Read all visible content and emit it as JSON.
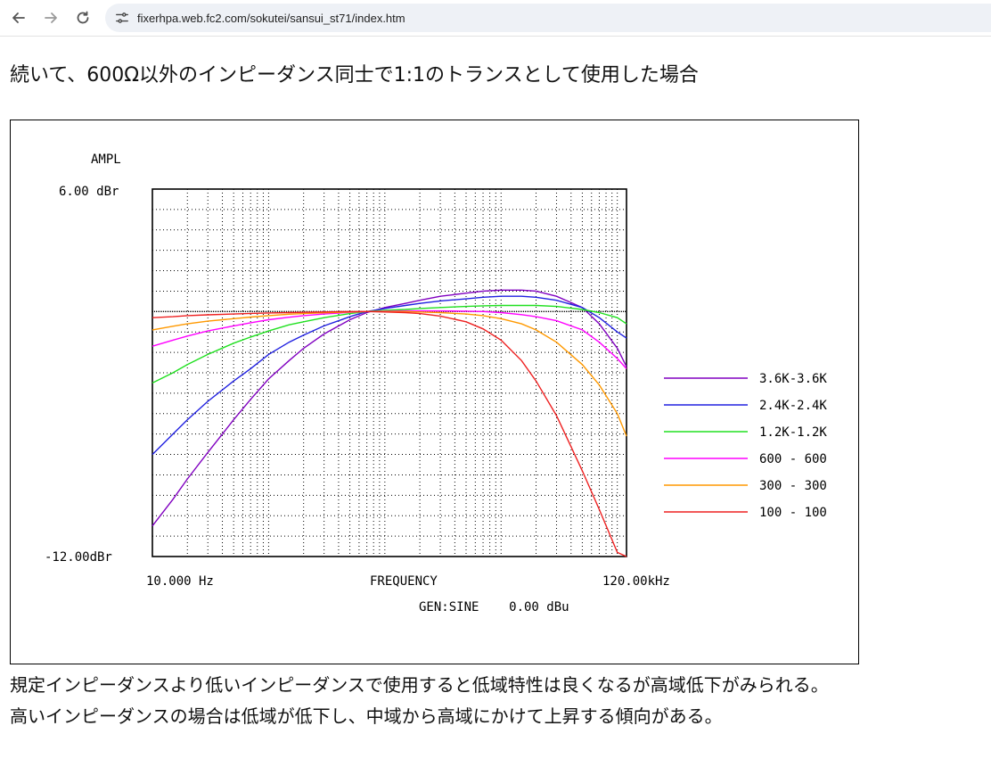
{
  "browser": {
    "url": "fixerhpa.web.fc2.com/sokutei/sansui_st71/index.htm",
    "icons": {
      "back": "arrow-left-icon",
      "forward": "arrow-right-icon",
      "reload": "reload-icon",
      "site": "site-settings-icon"
    }
  },
  "page": {
    "heading": "続いて、600Ω以外のインピーダンス同士で1:1のトランスとして使用した場合",
    "paragraph_1": "規定インピーダンスより低いインピーダンスで使用すると低域特性は良くなるが高域低下がみられる。",
    "paragraph_2": "高いインピーダンスの場合は低域が低下し、中域から高域にかけて上昇する傾向がある。"
  },
  "chart_data": {
    "type": "line",
    "ylabel": "AMPL",
    "y_top_label": "6.00 dBr",
    "y_bottom_label": "-12.00dBr",
    "x_left_label": "10.000 Hz",
    "x_right_label": "120.00kHz",
    "xlabel": "FREQUENCY",
    "generator_label": "GEN:SINE    0.00 dBu",
    "xscale": "log",
    "xlim": [
      10,
      120000
    ],
    "ylim": [
      -12,
      6
    ],
    "grid": true,
    "legend_position": "right",
    "series": [
      {
        "name": "3.6K-3.6K",
        "color": "#8000c0",
        "x": [
          10,
          15,
          20,
          30,
          50,
          70,
          100,
          150,
          200,
          300,
          500,
          700,
          1000,
          1500,
          2000,
          3000,
          5000,
          7000,
          10000,
          15000,
          20000,
          30000,
          50000,
          70000,
          100000,
          120000
        ],
        "y": [
          -10.5,
          -9.2,
          -8.2,
          -6.9,
          -5.3,
          -4.3,
          -3.3,
          -2.4,
          -1.8,
          -1.1,
          -0.4,
          -0.05,
          0.2,
          0.4,
          0.55,
          0.75,
          0.9,
          1.0,
          1.05,
          1.05,
          1.0,
          0.75,
          0.2,
          -0.6,
          -1.8,
          -2.7
        ]
      },
      {
        "name": "2.4K-2.4K",
        "color": "#2020e0",
        "x": [
          10,
          15,
          20,
          30,
          50,
          70,
          100,
          150,
          200,
          300,
          500,
          700,
          1000,
          1500,
          2000,
          3000,
          5000,
          7000,
          10000,
          15000,
          20000,
          30000,
          50000,
          70000,
          100000,
          120000
        ],
        "y": [
          -7.0,
          -6.0,
          -5.3,
          -4.4,
          -3.4,
          -2.8,
          -2.1,
          -1.5,
          -1.15,
          -0.7,
          -0.25,
          0.0,
          0.15,
          0.3,
          0.4,
          0.52,
          0.62,
          0.7,
          0.75,
          0.75,
          0.7,
          0.55,
          0.2,
          -0.3,
          -1.0,
          -1.3
        ]
      },
      {
        "name": "1.2K-1.2K",
        "color": "#20e020",
        "x": [
          10,
          15,
          20,
          30,
          50,
          70,
          100,
          150,
          200,
          300,
          500,
          700,
          1000,
          1500,
          2000,
          3000,
          5000,
          7000,
          10000,
          15000,
          20000,
          30000,
          50000,
          70000,
          100000,
          120000
        ],
        "y": [
          -3.5,
          -3.0,
          -2.6,
          -2.1,
          -1.55,
          -1.25,
          -0.95,
          -0.65,
          -0.5,
          -0.3,
          -0.1,
          0.0,
          0.06,
          0.1,
          0.15,
          0.2,
          0.25,
          0.28,
          0.3,
          0.3,
          0.3,
          0.25,
          0.1,
          -0.05,
          -0.3,
          -0.6
        ]
      },
      {
        "name": "600 - 600",
        "color": "#ff00ff",
        "x": [
          10,
          15,
          20,
          30,
          50,
          70,
          100,
          150,
          200,
          300,
          500,
          700,
          1000,
          1500,
          2000,
          3000,
          5000,
          7000,
          10000,
          15000,
          20000,
          30000,
          50000,
          70000,
          100000,
          120000
        ],
        "y": [
          -1.7,
          -1.4,
          -1.2,
          -0.95,
          -0.7,
          -0.55,
          -0.4,
          -0.28,
          -0.2,
          -0.12,
          -0.04,
          0.0,
          0.02,
          0.03,
          0.03,
          0.03,
          0.02,
          0.0,
          -0.05,
          -0.15,
          -0.25,
          -0.45,
          -0.9,
          -1.5,
          -2.3,
          -2.8
        ]
      },
      {
        "name": "300 - 300",
        "color": "#ff9900",
        "x": [
          10,
          15,
          20,
          30,
          50,
          70,
          100,
          150,
          200,
          300,
          500,
          700,
          1000,
          1500,
          2000,
          3000,
          5000,
          7000,
          10000,
          15000,
          20000,
          30000,
          50000,
          70000,
          100000,
          120000
        ],
        "y": [
          -0.9,
          -0.72,
          -0.6,
          -0.47,
          -0.35,
          -0.27,
          -0.2,
          -0.13,
          -0.1,
          -0.06,
          -0.02,
          0.0,
          0.0,
          0.0,
          -0.02,
          -0.05,
          -0.12,
          -0.2,
          -0.35,
          -0.6,
          -0.9,
          -1.5,
          -2.6,
          -3.6,
          -5.0,
          -6.1
        ]
      },
      {
        "name": "100 - 100",
        "color": "#ee2020",
        "x": [
          10,
          15,
          20,
          30,
          50,
          70,
          100,
          150,
          200,
          300,
          500,
          700,
          1000,
          1500,
          2000,
          3000,
          5000,
          7000,
          10000,
          15000,
          20000,
          30000,
          50000,
          70000,
          100000,
          120000
        ],
        "y": [
          -0.3,
          -0.25,
          -0.2,
          -0.16,
          -0.12,
          -0.09,
          -0.07,
          -0.05,
          -0.04,
          -0.02,
          0.0,
          0.0,
          -0.02,
          -0.05,
          -0.1,
          -0.22,
          -0.5,
          -0.85,
          -1.4,
          -2.4,
          -3.4,
          -5.1,
          -7.8,
          -9.7,
          -11.8,
          -12.0
        ]
      }
    ]
  }
}
